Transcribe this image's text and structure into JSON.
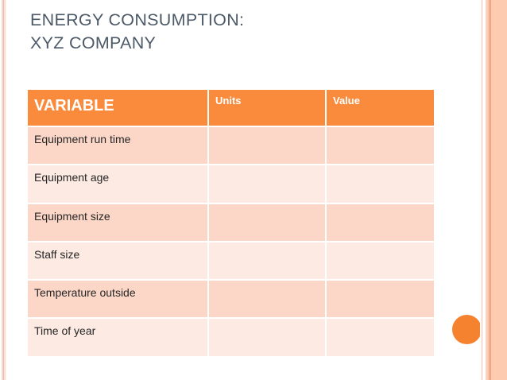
{
  "slide": {
    "title": {
      "line1": "ENERGY CONSUMPTION:",
      "line2": "XYZ COMPANY"
    },
    "table": {
      "headers": [
        "VARIABLE",
        "Units",
        "Value"
      ],
      "rows": [
        {
          "variable": "Equipment run time",
          "units": "",
          "value": ""
        },
        {
          "variable": "Equipment age",
          "units": "",
          "value": ""
        },
        {
          "variable": "Equipment size",
          "units": "",
          "value": ""
        },
        {
          "variable": "Staff size",
          "units": "",
          "value": ""
        },
        {
          "variable": "Temperature outside",
          "units": "",
          "value": ""
        },
        {
          "variable": "Time of year",
          "units": "",
          "value": ""
        }
      ]
    },
    "colors": {
      "header_orange": "#fa8b3d",
      "row_dark_pink": "#fcd6c7",
      "row_light_pink": "#fdeae3",
      "accent_circle_orange": "#f5822f",
      "title_text": "#4d5a68",
      "body_text": "#262626",
      "stripe_salmon": "#f0a585",
      "stripe_peach_band": "#fccbb0"
    }
  }
}
